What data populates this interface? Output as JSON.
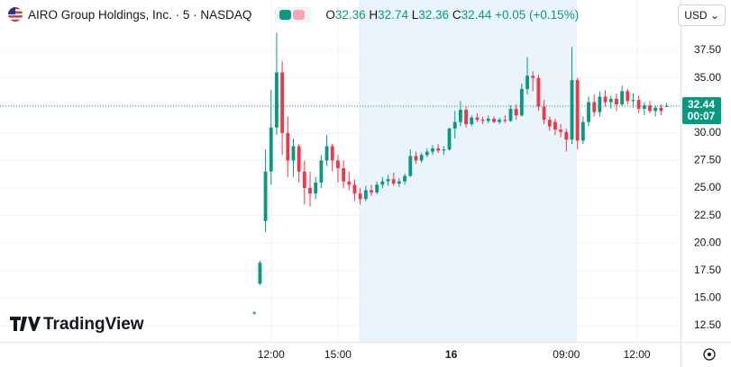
{
  "chart_data": {
    "type": "candlestick",
    "title": "AIRO Group Holdings, Inc. · 5 · NASDAQ",
    "legend_labels": {
      "open": "O",
      "high": "H",
      "low": "L",
      "close": "C"
    },
    "change": "+0.05 (+0.15%)",
    "currency": "USD",
    "countdown": "00:07",
    "brand": "TradingView",
    "up_color": "#089981",
    "down_color": "#f23645",
    "extended_hours": [
      193.2,
      310.7
    ],
    "xlim": [
      0,
      366.5
    ],
    "ylim": [
      11.03,
      42.08
    ],
    "grid": true,
    "xticks": [
      {
        "value": 146,
        "label": "12:00"
      },
      {
        "value": 182,
        "label": "15:00"
      },
      {
        "value": 243,
        "label": "16"
      },
      {
        "value": 305,
        "label": "09:00"
      },
      {
        "value": 343,
        "label": "12:00"
      }
    ],
    "yticks": [
      {
        "value": 12.5,
        "label": "12.50"
      },
      {
        "value": 15,
        "label": "15.00"
      },
      {
        "value": 17.5,
        "label": "17.50"
      },
      {
        "value": 20,
        "label": "20.00"
      },
      {
        "value": 22.5,
        "label": "22.50"
      },
      {
        "value": 25,
        "label": "25.00"
      },
      {
        "value": 27.5,
        "label": "27.50"
      },
      {
        "value": 30,
        "label": "30.00"
      },
      {
        "value": 32.5,
        "label": "32.50"
      },
      {
        "value": 35,
        "label": "35.00"
      },
      {
        "value": 37.5,
        "label": "37.50"
      }
    ],
    "x": [
      137,
      140,
      143,
      146,
      149,
      152,
      155,
      158,
      161,
      164,
      167,
      170,
      173,
      176,
      179,
      182,
      185,
      188,
      191,
      194,
      197,
      200,
      203,
      206,
      209,
      212,
      215,
      218,
      221,
      224,
      227,
      230,
      233,
      236,
      239,
      242,
      245,
      248,
      251,
      254,
      257,
      260,
      263,
      266,
      269,
      272,
      275,
      278,
      281,
      284,
      287,
      290,
      293,
      296,
      299,
      302,
      305,
      308,
      311,
      314,
      317,
      320,
      323,
      326,
      329,
      332,
      335,
      338,
      341,
      344,
      347,
      350,
      353,
      356,
      359
    ],
    "open": [
      13.6,
      16.3,
      22.0,
      26.5,
      30.5,
      35.5,
      30.0,
      27.5,
      28.8,
      26.5,
      25.0,
      24.5,
      25.5,
      27.5,
      28.8,
      27.5,
      26.8,
      25.6,
      25.3,
      24.5,
      24.0,
      24.8,
      24.6,
      25.3,
      25.6,
      25.8,
      25.4,
      25.6,
      26.1,
      27.9,
      27.5,
      28.0,
      28.3,
      28.6,
      28.4,
      28.5,
      30.4,
      31.0,
      32.1,
      30.8,
      31.4,
      31.2,
      31.1,
      31.3,
      31.0,
      31.2,
      31.1,
      32.2,
      31.6,
      34.0,
      35.2,
      35.0,
      32.4,
      31.2,
      31.0,
      30.3,
      30.1,
      29.4,
      34.8,
      29.3,
      31.0,
      32.8,
      31.9,
      33.3,
      32.8,
      33.1,
      32.6,
      33.8,
      32.9,
      33.0,
      32.2,
      32.5,
      32.0,
      32.3,
      32.36
    ],
    "high": [
      13.8,
      18.4,
      28.5,
      33.9,
      39.1,
      36.5,
      31.5,
      29.5,
      29.0,
      27.5,
      26.5,
      26.0,
      28.0,
      29.8,
      29.0,
      28.0,
      27.5,
      26.5,
      25.8,
      25.0,
      25.2,
      25.3,
      25.6,
      26.0,
      26.2,
      26.4,
      25.9,
      26.3,
      28.5,
      28.3,
      28.2,
      28.6,
      28.9,
      29.0,
      28.8,
      30.5,
      32.0,
      32.9,
      32.4,
      31.6,
      31.8,
      31.5,
      31.6,
      31.5,
      31.4,
      31.6,
      32.5,
      32.6,
      34.5,
      36.9,
      35.6,
      35.3,
      33.0,
      31.5,
      31.3,
      30.8,
      30.4,
      37.8,
      35.0,
      31.5,
      33.3,
      33.5,
      33.8,
      33.9,
      33.4,
      33.6,
      34.3,
      34.0,
      33.6,
      33.4,
      32.8,
      32.9,
      32.5,
      32.6,
      32.74
    ],
    "low": [
      13.5,
      16.2,
      21.0,
      25.3,
      29.8,
      28.0,
      26.0,
      26.0,
      25.5,
      23.5,
      23.3,
      24.0,
      25.0,
      27.0,
      26.5,
      25.5,
      25.0,
      24.8,
      23.8,
      23.5,
      23.8,
      24.3,
      24.4,
      25.0,
      25.2,
      25.2,
      25.1,
      25.3,
      26.0,
      27.2,
      27.3,
      27.8,
      28.0,
      28.2,
      28.0,
      28.4,
      29.5,
      30.6,
      30.5,
      30.6,
      31.0,
      30.8,
      30.9,
      30.9,
      30.8,
      30.9,
      31.0,
      31.2,
      31.5,
      33.5,
      33.8,
      32.0,
      30.8,
      30.2,
      29.8,
      29.6,
      28.3,
      29.0,
      28.5,
      29.0,
      30.6,
      31.5,
      31.5,
      32.4,
      32.2,
      32.0,
      32.4,
      32.6,
      32.3,
      31.8,
      31.6,
      31.8,
      31.5,
      31.6,
      32.36
    ],
    "close": [
      13.7,
      18.2,
      26.5,
      30.5,
      35.5,
      30.0,
      27.5,
      28.8,
      26.5,
      25.0,
      24.5,
      25.5,
      27.5,
      28.8,
      27.5,
      26.8,
      25.6,
      25.3,
      24.5,
      24.0,
      24.8,
      24.6,
      25.3,
      25.6,
      25.8,
      25.4,
      25.6,
      26.1,
      27.9,
      27.5,
      28.0,
      28.3,
      28.6,
      28.4,
      28.5,
      30.4,
      31.0,
      32.1,
      30.8,
      31.4,
      31.2,
      31.1,
      31.3,
      31.0,
      31.2,
      31.1,
      32.2,
      31.6,
      34.0,
      35.2,
      35.0,
      32.4,
      31.2,
      30.6,
      30.3,
      30.1,
      29.4,
      34.8,
      29.3,
      31.0,
      32.8,
      31.9,
      33.3,
      32.8,
      33.1,
      32.6,
      33.8,
      32.9,
      33.0,
      32.2,
      32.5,
      32.0,
      32.3,
      32.0,
      32.44
    ]
  }
}
